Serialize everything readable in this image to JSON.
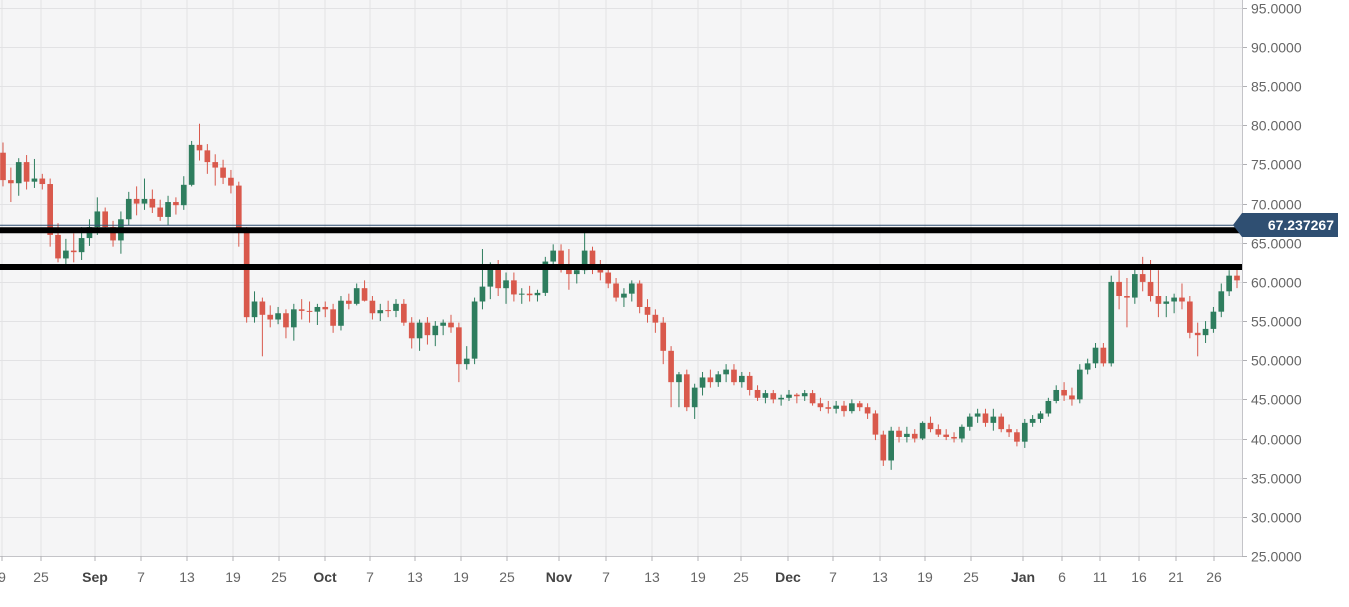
{
  "chart_data": {
    "type": "candlestick",
    "y_axis": {
      "side": "right",
      "ticks": [
        "95.0000",
        "90.0000",
        "85.0000",
        "80.0000",
        "75.0000",
        "70.0000",
        "65.0000",
        "60.0000",
        "55.0000",
        "50.0000",
        "45.0000",
        "40.0000",
        "35.0000",
        "30.0000",
        "25.0000"
      ],
      "tick_values": [
        95,
        90,
        85,
        80,
        75,
        70,
        65,
        60,
        55,
        50,
        45,
        40,
        35,
        30,
        25
      ],
      "ylim": [
        25,
        96
      ]
    },
    "x_axis": {
      "ticks": [
        {
          "label": "9",
          "bold": false
        },
        {
          "label": "25",
          "bold": false
        },
        {
          "label": "Sep",
          "bold": true
        },
        {
          "label": "7",
          "bold": false
        },
        {
          "label": "13",
          "bold": false
        },
        {
          "label": "19",
          "bold": false
        },
        {
          "label": "25",
          "bold": false
        },
        {
          "label": "Oct",
          "bold": true
        },
        {
          "label": "7",
          "bold": false
        },
        {
          "label": "13",
          "bold": false
        },
        {
          "label": "19",
          "bold": false
        },
        {
          "label": "25",
          "bold": false
        },
        {
          "label": "Nov",
          "bold": true
        },
        {
          "label": "7",
          "bold": false
        },
        {
          "label": "13",
          "bold": false
        },
        {
          "label": "19",
          "bold": false
        },
        {
          "label": "25",
          "bold": false
        },
        {
          "label": "Dec",
          "bold": true
        },
        {
          "label": "7",
          "bold": false
        },
        {
          "label": "13",
          "bold": false
        },
        {
          "label": "19",
          "bold": false
        },
        {
          "label": "25",
          "bold": false
        },
        {
          "label": "Jan",
          "bold": true
        },
        {
          "label": "6",
          "bold": false
        },
        {
          "label": "11",
          "bold": false
        },
        {
          "label": "16",
          "bold": false
        },
        {
          "label": "21",
          "bold": false
        },
        {
          "label": "26",
          "bold": false
        }
      ]
    },
    "candles_ohlc": [
      [
        76.5,
        77.8,
        72.2,
        73.0
      ],
      [
        73.0,
        74.6,
        70.2,
        72.6
      ],
      [
        72.6,
        75.8,
        71.0,
        75.3
      ],
      [
        75.3,
        76.2,
        71.8,
        72.8
      ],
      [
        72.8,
        75.7,
        72.0,
        73.2
      ],
      [
        73.2,
        73.8,
        71.8,
        72.5
      ],
      [
        72.5,
        73.2,
        64.5,
        66.0
      ],
      [
        66.0,
        67.5,
        62.5,
        63.0
      ],
      [
        63.0,
        65.5,
        62.0,
        64.0
      ],
      [
        64.0,
        66.2,
        62.5,
        63.8
      ],
      [
        63.8,
        67.0,
        62.8,
        65.6
      ],
      [
        65.6,
        68.0,
        64.6,
        67.0
      ],
      [
        67.0,
        70.8,
        66.0,
        69.0
      ],
      [
        69.0,
        69.5,
        66.5,
        67.0
      ],
      [
        67.0,
        67.8,
        64.5,
        65.3
      ],
      [
        65.3,
        69.0,
        63.6,
        68.0
      ],
      [
        68.0,
        71.5,
        67.2,
        70.6
      ],
      [
        70.6,
        72.2,
        68.5,
        70.0
      ],
      [
        70.0,
        73.2,
        69.2,
        70.6
      ],
      [
        70.6,
        71.8,
        68.8,
        69.5
      ],
      [
        69.5,
        70.5,
        67.8,
        68.3
      ],
      [
        68.3,
        71.0,
        67.2,
        70.2
      ],
      [
        70.2,
        70.8,
        68.6,
        69.8
      ],
      [
        69.8,
        73.5,
        69.2,
        72.4
      ],
      [
        72.4,
        78.0,
        72.2,
        77.5
      ],
      [
        77.5,
        80.2,
        75.5,
        76.8
      ],
      [
        76.8,
        77.6,
        73.8,
        75.3
      ],
      [
        75.3,
        76.3,
        72.3,
        74.6
      ],
      [
        74.6,
        75.6,
        72.5,
        73.3
      ],
      [
        73.3,
        74.3,
        71.3,
        72.3
      ],
      [
        72.3,
        72.8,
        64.5,
        66.5
      ],
      [
        66.5,
        67.0,
        54.8,
        55.5
      ],
      [
        55.5,
        58.8,
        54.8,
        57.5
      ],
      [
        57.5,
        58.0,
        50.5,
        55.8
      ],
      [
        55.8,
        57.0,
        54.2,
        55.2
      ],
      [
        55.2,
        56.8,
        54.6,
        56.0
      ],
      [
        56.0,
        56.5,
        52.8,
        54.2
      ],
      [
        54.2,
        57.2,
        52.5,
        56.5
      ],
      [
        56.5,
        57.8,
        55.2,
        56.3
      ],
      [
        56.3,
        57.5,
        54.8,
        56.2
      ],
      [
        56.2,
        57.2,
        54.5,
        56.8
      ],
      [
        56.8,
        57.5,
        55.5,
        56.5
      ],
      [
        56.5,
        57.2,
        53.5,
        54.4
      ],
      [
        54.4,
        58.2,
        53.8,
        57.6
      ],
      [
        57.6,
        58.5,
        56.5,
        57.2
      ],
      [
        57.2,
        59.8,
        57.0,
        59.2
      ],
      [
        59.2,
        60.2,
        57.5,
        57.6
      ],
      [
        57.6,
        58.2,
        55.2,
        56.0
      ],
      [
        56.0,
        57.2,
        55.0,
        56.4
      ],
      [
        56.4,
        57.6,
        55.5,
        56.3
      ],
      [
        56.3,
        57.8,
        55.5,
        57.2
      ],
      [
        57.2,
        57.8,
        54.4,
        54.8
      ],
      [
        54.8,
        55.5,
        51.5,
        52.8
      ],
      [
        52.8,
        55.2,
        51.2,
        54.8
      ],
      [
        54.8,
        55.5,
        52.0,
        53.2
      ],
      [
        53.2,
        55.0,
        51.8,
        54.4
      ],
      [
        54.4,
        55.2,
        53.2,
        54.8
      ],
      [
        54.8,
        55.8,
        53.5,
        54.2
      ],
      [
        54.2,
        54.8,
        47.2,
        49.5
      ],
      [
        49.5,
        51.8,
        48.8,
        50.2
      ],
      [
        50.2,
        58.0,
        49.5,
        57.5
      ],
      [
        57.5,
        64.2,
        56.5,
        59.4
      ],
      [
        59.4,
        62.5,
        57.8,
        62.0
      ],
      [
        62.0,
        62.8,
        58.2,
        59.2
      ],
      [
        59.2,
        61.2,
        57.2,
        60.2
      ],
      [
        60.2,
        61.2,
        57.5,
        58.4
      ],
      [
        58.4,
        59.2,
        57.2,
        58.5
      ],
      [
        58.5,
        59.5,
        57.5,
        58.3
      ],
      [
        58.3,
        59.0,
        57.5,
        58.6
      ],
      [
        58.6,
        63.2,
        58.2,
        62.6
      ],
      [
        62.6,
        64.8,
        62.0,
        64.0
      ],
      [
        64.0,
        64.8,
        61.2,
        62.2
      ],
      [
        62.2,
        64.2,
        59.0,
        61.0
      ],
      [
        61.0,
        62.2,
        59.8,
        61.5
      ],
      [
        61.5,
        66.5,
        61.0,
        64.0
      ],
      [
        64.0,
        64.5,
        61.0,
        62.0
      ],
      [
        62.0,
        62.8,
        60.2,
        61.2
      ],
      [
        61.2,
        62.2,
        59.2,
        59.8
      ],
      [
        59.8,
        60.5,
        57.5,
        58.0
      ],
      [
        58.0,
        59.2,
        56.8,
        58.5
      ],
      [
        58.5,
        60.2,
        57.5,
        59.8
      ],
      [
        59.8,
        60.2,
        56.0,
        56.8
      ],
      [
        56.8,
        57.8,
        54.8,
        55.8
      ],
      [
        55.8,
        56.5,
        53.5,
        54.8
      ],
      [
        54.8,
        55.5,
        49.5,
        51.2
      ],
      [
        51.2,
        51.8,
        44.0,
        47.2
      ],
      [
        47.2,
        48.5,
        44.0,
        48.2
      ],
      [
        48.2,
        48.8,
        43.5,
        44.0
      ],
      [
        44.0,
        47.0,
        42.5,
        46.5
      ],
      [
        46.5,
        48.5,
        45.5,
        47.8
      ],
      [
        47.8,
        48.8,
        46.5,
        47.2
      ],
      [
        47.2,
        48.6,
        46.6,
        48.2
      ],
      [
        48.2,
        49.5,
        47.2,
        48.8
      ],
      [
        48.8,
        49.5,
        46.8,
        47.2
      ],
      [
        47.2,
        48.5,
        46.5,
        48.0
      ],
      [
        48.0,
        48.5,
        45.5,
        46.2
      ],
      [
        46.2,
        46.8,
        44.8,
        45.2
      ],
      [
        45.2,
        46.2,
        44.5,
        45.8
      ],
      [
        45.8,
        46.2,
        44.5,
        45.0
      ],
      [
        45.0,
        45.6,
        44.2,
        45.2
      ],
      [
        45.2,
        46.2,
        44.8,
        45.6
      ],
      [
        45.6,
        45.8,
        44.5,
        45.4
      ],
      [
        45.4,
        46.2,
        44.8,
        45.8
      ],
      [
        45.8,
        46.2,
        44.2,
        44.5
      ],
      [
        44.5,
        45.2,
        43.5,
        44.0
      ],
      [
        44.0,
        44.8,
        43.2,
        43.8
      ],
      [
        43.8,
        44.8,
        43.2,
        44.2
      ],
      [
        44.2,
        44.8,
        42.8,
        43.5
      ],
      [
        43.5,
        45.0,
        43.2,
        44.5
      ],
      [
        44.5,
        44.8,
        43.5,
        44.0
      ],
      [
        44.0,
        44.5,
        42.5,
        43.2
      ],
      [
        43.2,
        43.6,
        39.8,
        40.5
      ],
      [
        40.5,
        41.0,
        36.5,
        37.2
      ],
      [
        37.2,
        41.5,
        36.0,
        41.0
      ],
      [
        41.0,
        41.5,
        39.5,
        40.2
      ],
      [
        40.2,
        41.5,
        39.5,
        40.6
      ],
      [
        40.6,
        41.2,
        39.5,
        40.0
      ],
      [
        40.0,
        42.2,
        39.8,
        42.0
      ],
      [
        42.0,
        42.8,
        40.8,
        41.2
      ],
      [
        41.2,
        41.8,
        40.2,
        40.5
      ],
      [
        40.5,
        41.2,
        39.8,
        40.2
      ],
      [
        40.2,
        40.8,
        39.5,
        40.0
      ],
      [
        40.0,
        41.8,
        39.5,
        41.5
      ],
      [
        41.5,
        43.2,
        41.0,
        42.8
      ],
      [
        42.8,
        43.8,
        42.0,
        43.2
      ],
      [
        43.2,
        43.8,
        41.5,
        42.0
      ],
      [
        42.0,
        43.8,
        41.0,
        42.8
      ],
      [
        42.8,
        43.2,
        40.8,
        41.2
      ],
      [
        41.2,
        41.8,
        40.2,
        40.8
      ],
      [
        40.8,
        41.2,
        39.0,
        39.6
      ],
      [
        39.6,
        42.5,
        38.8,
        42.0
      ],
      [
        42.0,
        43.0,
        41.5,
        42.5
      ],
      [
        42.5,
        43.5,
        42.0,
        43.2
      ],
      [
        43.2,
        45.2,
        42.8,
        44.8
      ],
      [
        44.8,
        46.8,
        44.5,
        46.2
      ],
      [
        46.2,
        47.2,
        44.8,
        45.5
      ],
      [
        45.5,
        46.5,
        44.2,
        45.0
      ],
      [
        45.0,
        49.5,
        44.5,
        48.8
      ],
      [
        48.8,
        50.2,
        48.2,
        49.6
      ],
      [
        49.6,
        52.2,
        49.0,
        51.6
      ],
      [
        51.6,
        52.2,
        49.2,
        49.6
      ],
      [
        49.6,
        60.8,
        49.2,
        60.0
      ],
      [
        60.0,
        61.5,
        56.5,
        58.2
      ],
      [
        58.2,
        60.5,
        54.2,
        58.0
      ],
      [
        58.0,
        61.8,
        57.2,
        61.0
      ],
      [
        61.0,
        63.2,
        58.8,
        60.0
      ],
      [
        60.0,
        62.8,
        57.5,
        58.2
      ],
      [
        58.2,
        61.5,
        55.5,
        57.2
      ],
      [
        57.2,
        58.2,
        55.5,
        57.5
      ],
      [
        57.5,
        58.5,
        56.0,
        58.0
      ],
      [
        58.0,
        59.8,
        56.5,
        57.5
      ],
      [
        57.5,
        58.2,
        52.8,
        53.5
      ],
      [
        53.5,
        54.8,
        50.5,
        53.2
      ],
      [
        53.2,
        55.0,
        52.2,
        54.0
      ],
      [
        54.0,
        56.8,
        53.5,
        56.2
      ],
      [
        56.2,
        59.8,
        55.5,
        58.8
      ],
      [
        58.8,
        61.5,
        58.2,
        60.8
      ],
      [
        60.8,
        62.0,
        59.2,
        60.2
      ]
    ],
    "colors": {
      "up": "#2e7d5e",
      "down": "#d9594c",
      "background": "#f5f5f6",
      "grid": "#e2e2e4",
      "axis_text": "#666666"
    },
    "horizontal_lines": [
      {
        "value": 67.237267,
        "style": "thin",
        "color": "#2f4f72"
      },
      {
        "value": 66.6,
        "style": "thick",
        "color": "#000000"
      },
      {
        "value": 61.9,
        "style": "thick",
        "color": "#000000"
      }
    ],
    "last_price_label": "67.237267"
  }
}
